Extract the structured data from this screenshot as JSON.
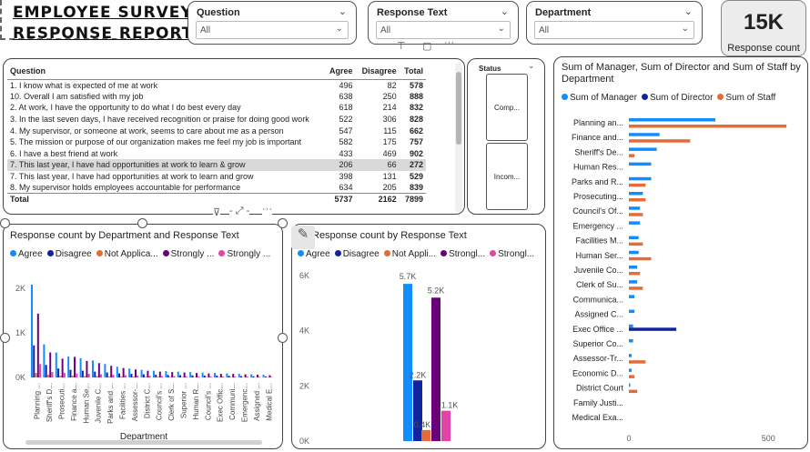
{
  "report": {
    "title_line1": "EMPLOYEE SURVEY",
    "title_line2": "RESPONSE REPORT."
  },
  "slicers": [
    {
      "label": "Question",
      "value": "All"
    },
    {
      "label": "Response Text",
      "value": "All"
    },
    {
      "label": "Department",
      "value": "All"
    }
  ],
  "kpi": {
    "value": "15K",
    "label": "Response count"
  },
  "table": {
    "headers": {
      "question": "Question",
      "agree": "Agree",
      "disagree": "Disagree",
      "total": "Total"
    },
    "rows": [
      {
        "q": "1. I know what is expected of me at work",
        "agree": "496",
        "disagree": "82",
        "total": "578"
      },
      {
        "q": "10. Overall I am satisfied with my job",
        "agree": "638",
        "disagree": "250",
        "total": "888"
      },
      {
        "q": "2. At work, I have the opportunity to do what I do best every day",
        "agree": "618",
        "disagree": "214",
        "total": "832"
      },
      {
        "q": "3. In the last seven days, I have received recognition or praise for doing good work",
        "agree": "522",
        "disagree": "306",
        "total": "828"
      },
      {
        "q": "4. My supervisor, or someone at work, seems to care about me as a person",
        "agree": "547",
        "disagree": "115",
        "total": "662"
      },
      {
        "q": "5. The mission or purpose of our organization makes me feel my job is important",
        "agree": "582",
        "disagree": "175",
        "total": "757"
      },
      {
        "q": "6. I have a best friend at work",
        "agree": "433",
        "disagree": "469",
        "total": "902"
      },
      {
        "q": "7. This last year, I have had opportunities at work to learn & grow",
        "agree": "206",
        "disagree": "66",
        "total": "272"
      },
      {
        "q": "7. This last year, I have had opportunities at work to learn and grow",
        "agree": "398",
        "disagree": "131",
        "total": "529"
      },
      {
        "q": "8. My supervisor holds employees accountable for performance",
        "agree": "634",
        "disagree": "205",
        "total": "839"
      }
    ],
    "total_row": {
      "q": "Total",
      "agree": "5737",
      "disagree": "2162",
      "total": "7899"
    }
  },
  "status_slicer": {
    "label": "Status",
    "options": [
      "Comp...",
      "Incom..."
    ]
  },
  "colors": {
    "agree": "#118DFF",
    "disagree": "#12239E",
    "not_applicable": "#E66C37",
    "strongly1": "#6B007B",
    "strongly2": "#E044A7"
  },
  "legend_dept": [
    "Agree",
    "Disagree",
    "Not Applica...",
    "Strongly ...",
    "Strongly ..."
  ],
  "legend_resp": [
    "Agree",
    "Disagree",
    "Not Appli...",
    "Strongl...",
    "Strongl..."
  ],
  "legend_staff": [
    "Sum of Manager",
    "Sum of Director",
    "Sum of Staff"
  ],
  "chart_data": [
    {
      "type": "bar",
      "title": "Response count by Department and Response Text",
      "xlabel": "Department",
      "ylabel": "",
      "ylim": [
        0,
        2200
      ],
      "y_ticks": [
        "0K",
        "1K",
        "2K"
      ],
      "categories": [
        "Planning ...",
        "Sheriff's D...",
        "Prosecuti...",
        "Finance a...",
        "Human Se...",
        "Juvenile C...",
        "Parks and ...",
        "Facilities ...",
        "Assessor-...",
        "District C...",
        "Council's ...",
        "Clerk of S...",
        "Superior ...",
        "Human R...",
        "Council's ...",
        "Exec Offic...",
        "Communi...",
        "Emergenc...",
        "Assigned ...",
        "Medical E..."
      ],
      "series": [
        {
          "name": "Agree",
          "values": [
            2080,
            740,
            560,
            470,
            430,
            380,
            300,
            240,
            200,
            170,
            150,
            140,
            130,
            120,
            110,
            100,
            90,
            80,
            70,
            60
          ]
        },
        {
          "name": "Disagree",
          "values": [
            720,
            280,
            200,
            170,
            150,
            130,
            110,
            90,
            80,
            70,
            60,
            55,
            50,
            45,
            40,
            40,
            35,
            30,
            25,
            20
          ]
        },
        {
          "name": "Not Applica...",
          "values": [
            100,
            60,
            40,
            40,
            30,
            30,
            20,
            20,
            20,
            15,
            15,
            10,
            10,
            10,
            10,
            10,
            10,
            5,
            5,
            5
          ]
        },
        {
          "name": "Strongly ...",
          "values": [
            1430,
            560,
            420,
            460,
            370,
            320,
            260,
            210,
            180,
            150,
            130,
            120,
            110,
            100,
            90,
            80,
            80,
            70,
            60,
            50
          ]
        },
        {
          "name": "Strongly ...",
          "values": [
            300,
            120,
            100,
            90,
            80,
            70,
            60,
            50,
            40,
            35,
            30,
            30,
            25,
            25,
            20,
            20,
            20,
            15,
            15,
            10
          ]
        }
      ]
    },
    {
      "type": "bar",
      "title": "Response count by Response Text",
      "ylim": [
        0,
        6000
      ],
      "y_ticks": [
        "0K",
        "2K",
        "4K",
        "6K"
      ],
      "categories": [
        "Agree",
        "Disagree",
        "Not Appli...",
        "Strongl...",
        "Strongl..."
      ],
      "values": [
        5700,
        2200,
        400,
        5200,
        1100
      ],
      "data_labels": [
        "5.7K",
        "2.2K",
        "0.4K",
        "5.2K",
        "1.1K"
      ]
    },
    {
      "type": "bar",
      "orientation": "horizontal",
      "title": "Sum of Manager, Sum of Director and Sum of Staff by Department",
      "xlim": [
        0,
        620
      ],
      "x_ticks": [
        "0",
        "500"
      ],
      "categories": [
        "Planning an...",
        "Finance and...",
        "Sheriff's De...",
        "Human Res...",
        "Parks and R...",
        "Prosecuting...",
        "Council's Of...",
        "Emergency ...",
        "Facilities M...",
        "Human Ser...",
        "Juvenile Co...",
        "Clerk of Su...",
        "Communica...",
        "Assigned C...",
        "Exec Office ...",
        "Superior Co...",
        "Assessor-Tr...",
        "Economic D...",
        "District Court",
        "Family Justi...",
        "Medical Exa..."
      ],
      "series": [
        {
          "name": "Sum of Manager",
          "values": [
            310,
            110,
            100,
            80,
            80,
            50,
            40,
            40,
            35,
            35,
            30,
            30,
            20,
            20,
            15,
            15,
            10,
            10,
            5,
            0,
            0
          ]
        },
        {
          "name": "Sum of Director",
          "values": [
            0,
            0,
            0,
            0,
            0,
            0,
            0,
            0,
            0,
            0,
            0,
            0,
            0,
            0,
            170,
            0,
            0,
            0,
            0,
            0,
            0
          ]
        },
        {
          "name": "Sum of Staff",
          "values": [
            565,
            220,
            20,
            0,
            60,
            60,
            50,
            0,
            50,
            80,
            40,
            50,
            0,
            0,
            0,
            0,
            60,
            20,
            30,
            0,
            0
          ]
        }
      ]
    }
  ]
}
